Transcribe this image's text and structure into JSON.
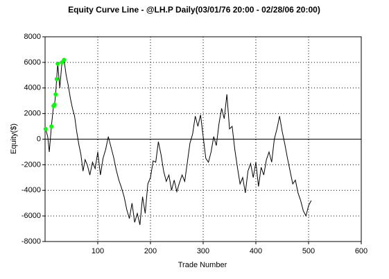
{
  "chart_data": {
    "type": "line",
    "title": "Equity Curve Line - @LH.P Daily(03/01/76 20:00 - 02/28/06 20:00)",
    "xlabel": "Trade Number",
    "ylabel": "Equity($)",
    "color": "#000000",
    "x": [
      1,
      5,
      8,
      12,
      16,
      18,
      20,
      22,
      24,
      28,
      32,
      36,
      40,
      44,
      48,
      52,
      56,
      60,
      64,
      68,
      72,
      76,
      80,
      85,
      90,
      95,
      100,
      105,
      110,
      115,
      120,
      125,
      130,
      135,
      140,
      145,
      150,
      155,
      160,
      165,
      170,
      175,
      180,
      185,
      190,
      195,
      200,
      205,
      210,
      215,
      220,
      225,
      230,
      235,
      240,
      245,
      250,
      255,
      260,
      265,
      270,
      275,
      280,
      285,
      290,
      295,
      300,
      305,
      310,
      315,
      320,
      325,
      330,
      335,
      340,
      345,
      350,
      355,
      360,
      365,
      370,
      375,
      380,
      385,
      390,
      395,
      400,
      405,
      410,
      415,
      420,
      425,
      430,
      435,
      440,
      445,
      450,
      455,
      460,
      465,
      470,
      475,
      480,
      485,
      490,
      495,
      500,
      505
    ],
    "values": [
      800,
      200,
      -1000,
      1000,
      2600,
      2700,
      3500,
      4700,
      5900,
      4000,
      6000,
      6200,
      5000,
      4200,
      3200,
      2400,
      1800,
      600,
      -400,
      -1200,
      -2500,
      -1600,
      -2000,
      -2800,
      -1800,
      -2300,
      -1000,
      -2800,
      -1500,
      -800,
      200,
      -600,
      -1400,
      -2400,
      -3200,
      -3800,
      -4500,
      -5500,
      -6200,
      -5000,
      -6500,
      -5800,
      -6700,
      -4500,
      -5800,
      -3500,
      -3000,
      -1700,
      -1800,
      -200,
      -1200,
      -2500,
      -3300,
      -2800,
      -4000,
      -3200,
      -4100,
      -3400,
      -2800,
      -3300,
      -1800,
      -300,
      400,
      1800,
      1000,
      1900,
      200,
      -1500,
      -1800,
      -1000,
      200,
      -500,
      1200,
      2400,
      1600,
      3500,
      800,
      1000,
      -800,
      -2200,
      -3500,
      -3000,
      -4200,
      -2500,
      -1900,
      -3000,
      -1800,
      -3700,
      -2200,
      -2800,
      -1600,
      -1000,
      -1800,
      0,
      800,
      1800,
      600,
      -400,
      -1500,
      -2500,
      -3500,
      -3200,
      -4200,
      -4800,
      -5600,
      -6000,
      -5200,
      -4800
    ],
    "markers": {
      "color": "#00ff00",
      "x": [
        1,
        12,
        16,
        18,
        20,
        22,
        24,
        32,
        36
      ],
      "values": [
        800,
        1000,
        2600,
        2700,
        3500,
        4700,
        5900,
        6000,
        6200
      ]
    },
    "xlim": [
      0,
      600
    ],
    "xticks": [
      100,
      200,
      300,
      400,
      500,
      600
    ],
    "ylim": [
      -8000,
      8000
    ],
    "yticks": [
      -8000,
      -6000,
      -4000,
      -2000,
      0,
      2000,
      4000,
      6000,
      8000
    ],
    "grid": true
  }
}
